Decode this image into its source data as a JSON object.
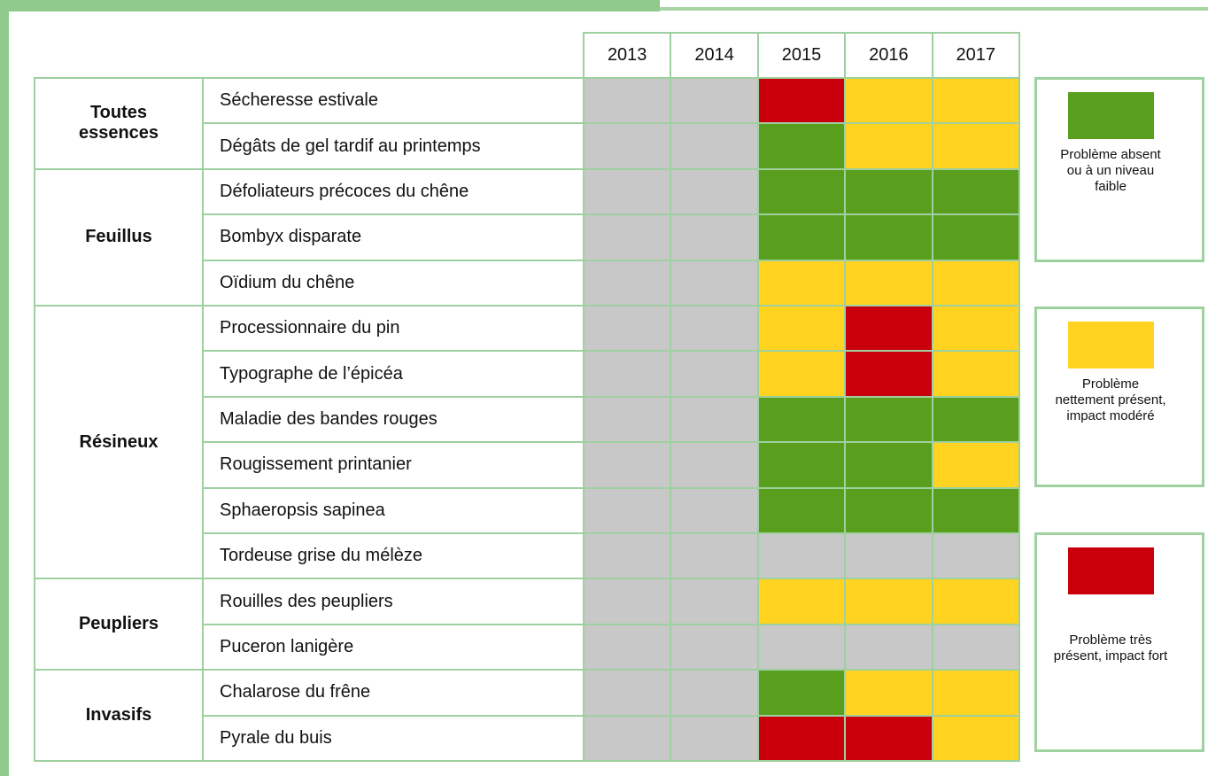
{
  "years": [
    "2013",
    "2014",
    "2015",
    "2016",
    "2017"
  ],
  "groups": [
    {
      "label": "Toutes essences",
      "rows": [
        {
          "label": "Sécheresse estivale",
          "cells": [
            "#c8c8c8",
            "#c8c8c8",
            "#c9000b",
            "#ffd320",
            "#ffd320"
          ]
        },
        {
          "label": "Dégâts de gel tardif au printemps",
          "cells": [
            "#c8c8c8",
            "#c8c8c8",
            "#5a9e1e",
            "#ffd320",
            "#ffd320"
          ]
        }
      ]
    },
    {
      "label": "Feuillus",
      "rows": [
        {
          "label": "Défoliateurs précoces du chêne",
          "cells": [
            "#c8c8c8",
            "#c8c8c8",
            "#5a9e1e",
            "#5a9e1e",
            "#5a9e1e"
          ]
        },
        {
          "label": "Bombyx disparate",
          "cells": [
            "#c8c8c8",
            "#c8c8c8",
            "#5a9e1e",
            "#5a9e1e",
            "#5a9e1e"
          ]
        },
        {
          "label": "Oïdium du chêne",
          "cells": [
            "#c8c8c8",
            "#c8c8c8",
            "#ffd320",
            "#ffd320",
            "#ffd320"
          ]
        }
      ]
    },
    {
      "label": "Résineux",
      "rows": [
        {
          "label": "Processionnaire du pin",
          "cells": [
            "#c8c8c8",
            "#c8c8c8",
            "#ffd320",
            "#c9000b",
            "#ffd320"
          ]
        },
        {
          "label": "Typographe de l’épicéa",
          "cells": [
            "#c8c8c8",
            "#c8c8c8",
            "#ffd320",
            "#c9000b",
            "#ffd320"
          ]
        },
        {
          "label": "Maladie des bandes rouges",
          "cells": [
            "#c8c8c8",
            "#c8c8c8",
            "#5a9e1e",
            "#5a9e1e",
            "#5a9e1e"
          ]
        },
        {
          "label": "Rougissement printanier",
          "cells": [
            "#c8c8c8",
            "#c8c8c8",
            "#5a9e1e",
            "#5a9e1e",
            "#ffd320"
          ]
        },
        {
          "label": "Sphaeropsis sapinea",
          "cells": [
            "#c8c8c8",
            "#c8c8c8",
            "#5a9e1e",
            "#5a9e1e",
            "#5a9e1e"
          ]
        },
        {
          "label": "Tordeuse grise du mélèze",
          "cells": [
            "#c8c8c8",
            "#c8c8c8",
            "#c8c8c8",
            "#c8c8c8",
            "#c8c8c8"
          ]
        }
      ]
    },
    {
      "label": "Peupliers",
      "rows": [
        {
          "label": "Rouilles des peupliers",
          "cells": [
            "#c8c8c8",
            "#c8c8c8",
            "#ffd320",
            "#ffd320",
            "#ffd320"
          ]
        },
        {
          "label": "Puceron lanigère",
          "cells": [
            "#c8c8c8",
            "#c8c8c8",
            "#c8c8c8",
            "#c8c8c8",
            "#c8c8c8"
          ]
        }
      ]
    },
    {
      "label": "Invasifs",
      "rows": [
        {
          "label": "Chalarose du frêne",
          "cells": [
            "#c8c8c8",
            "#c8c8c8",
            "#5a9e1e",
            "#ffd320",
            "#ffd320"
          ]
        },
        {
          "label": "Pyrale du buis",
          "cells": [
            "#c8c8c8",
            "#c8c8c8",
            "#c9000b",
            "#c9000b",
            "#ffd320"
          ]
        }
      ]
    }
  ],
  "legend": [
    {
      "color": "#5a9e1e",
      "label": "Problème absent ou à un niveau faible"
    },
    {
      "color": "#ffd320",
      "label": "Problème nettement présent, impact modéré"
    },
    {
      "color": "#c9000b",
      "label": "Problème très présent, impact fort"
    }
  ]
}
